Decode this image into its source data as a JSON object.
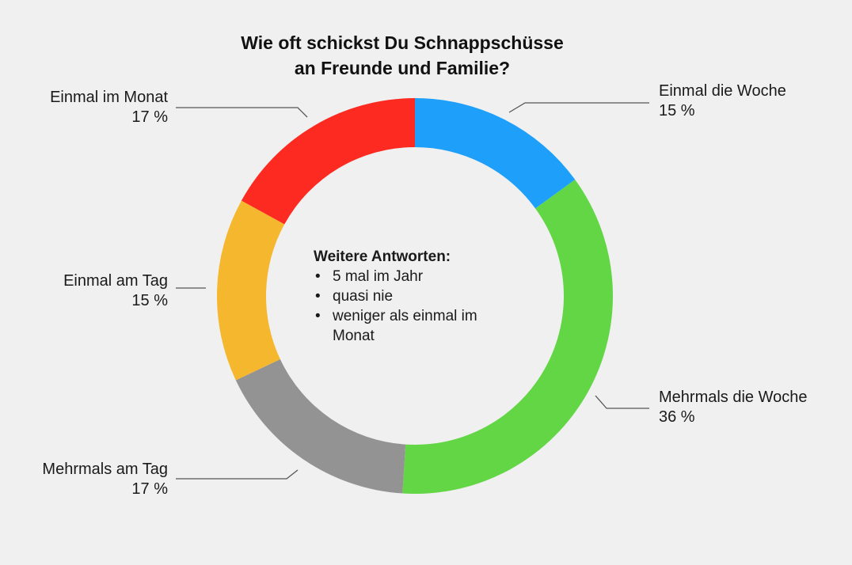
{
  "chart_data": {
    "type": "pie",
    "variant": "donut",
    "title": "Wie oft schickst Du Schnappschüsse an Freunde und Familie?",
    "title_lines": [
      "Wie oft schickst Du Schnappschüsse",
      "an Freunde und Familie?"
    ],
    "unit": "%",
    "slices": [
      {
        "label": "Einmal die Woche",
        "value": 15,
        "value_text": "15 %",
        "color": "#1ea0fa"
      },
      {
        "label": "Mehrmals die Woche",
        "value": 36,
        "value_text": "36 %",
        "color": "#63d646"
      },
      {
        "label": "Mehrmals am Tag",
        "value": 17,
        "value_text": "17 %",
        "color": "#939393"
      },
      {
        "label": "Einmal am Tag",
        "value": 15,
        "value_text": "15 %",
        "color": "#f5b72d"
      },
      {
        "label": "Einmal im Monat",
        "value": 17,
        "value_text": "17 %",
        "color": "#fc2a20"
      }
    ],
    "annotation": {
      "heading": "Weitere Antworten:",
      "items": [
        "5 mal im Jahr",
        "quasi nie",
        "weniger als einmal im Monat"
      ]
    },
    "legend": "none",
    "leader_line_color": "#555555"
  }
}
